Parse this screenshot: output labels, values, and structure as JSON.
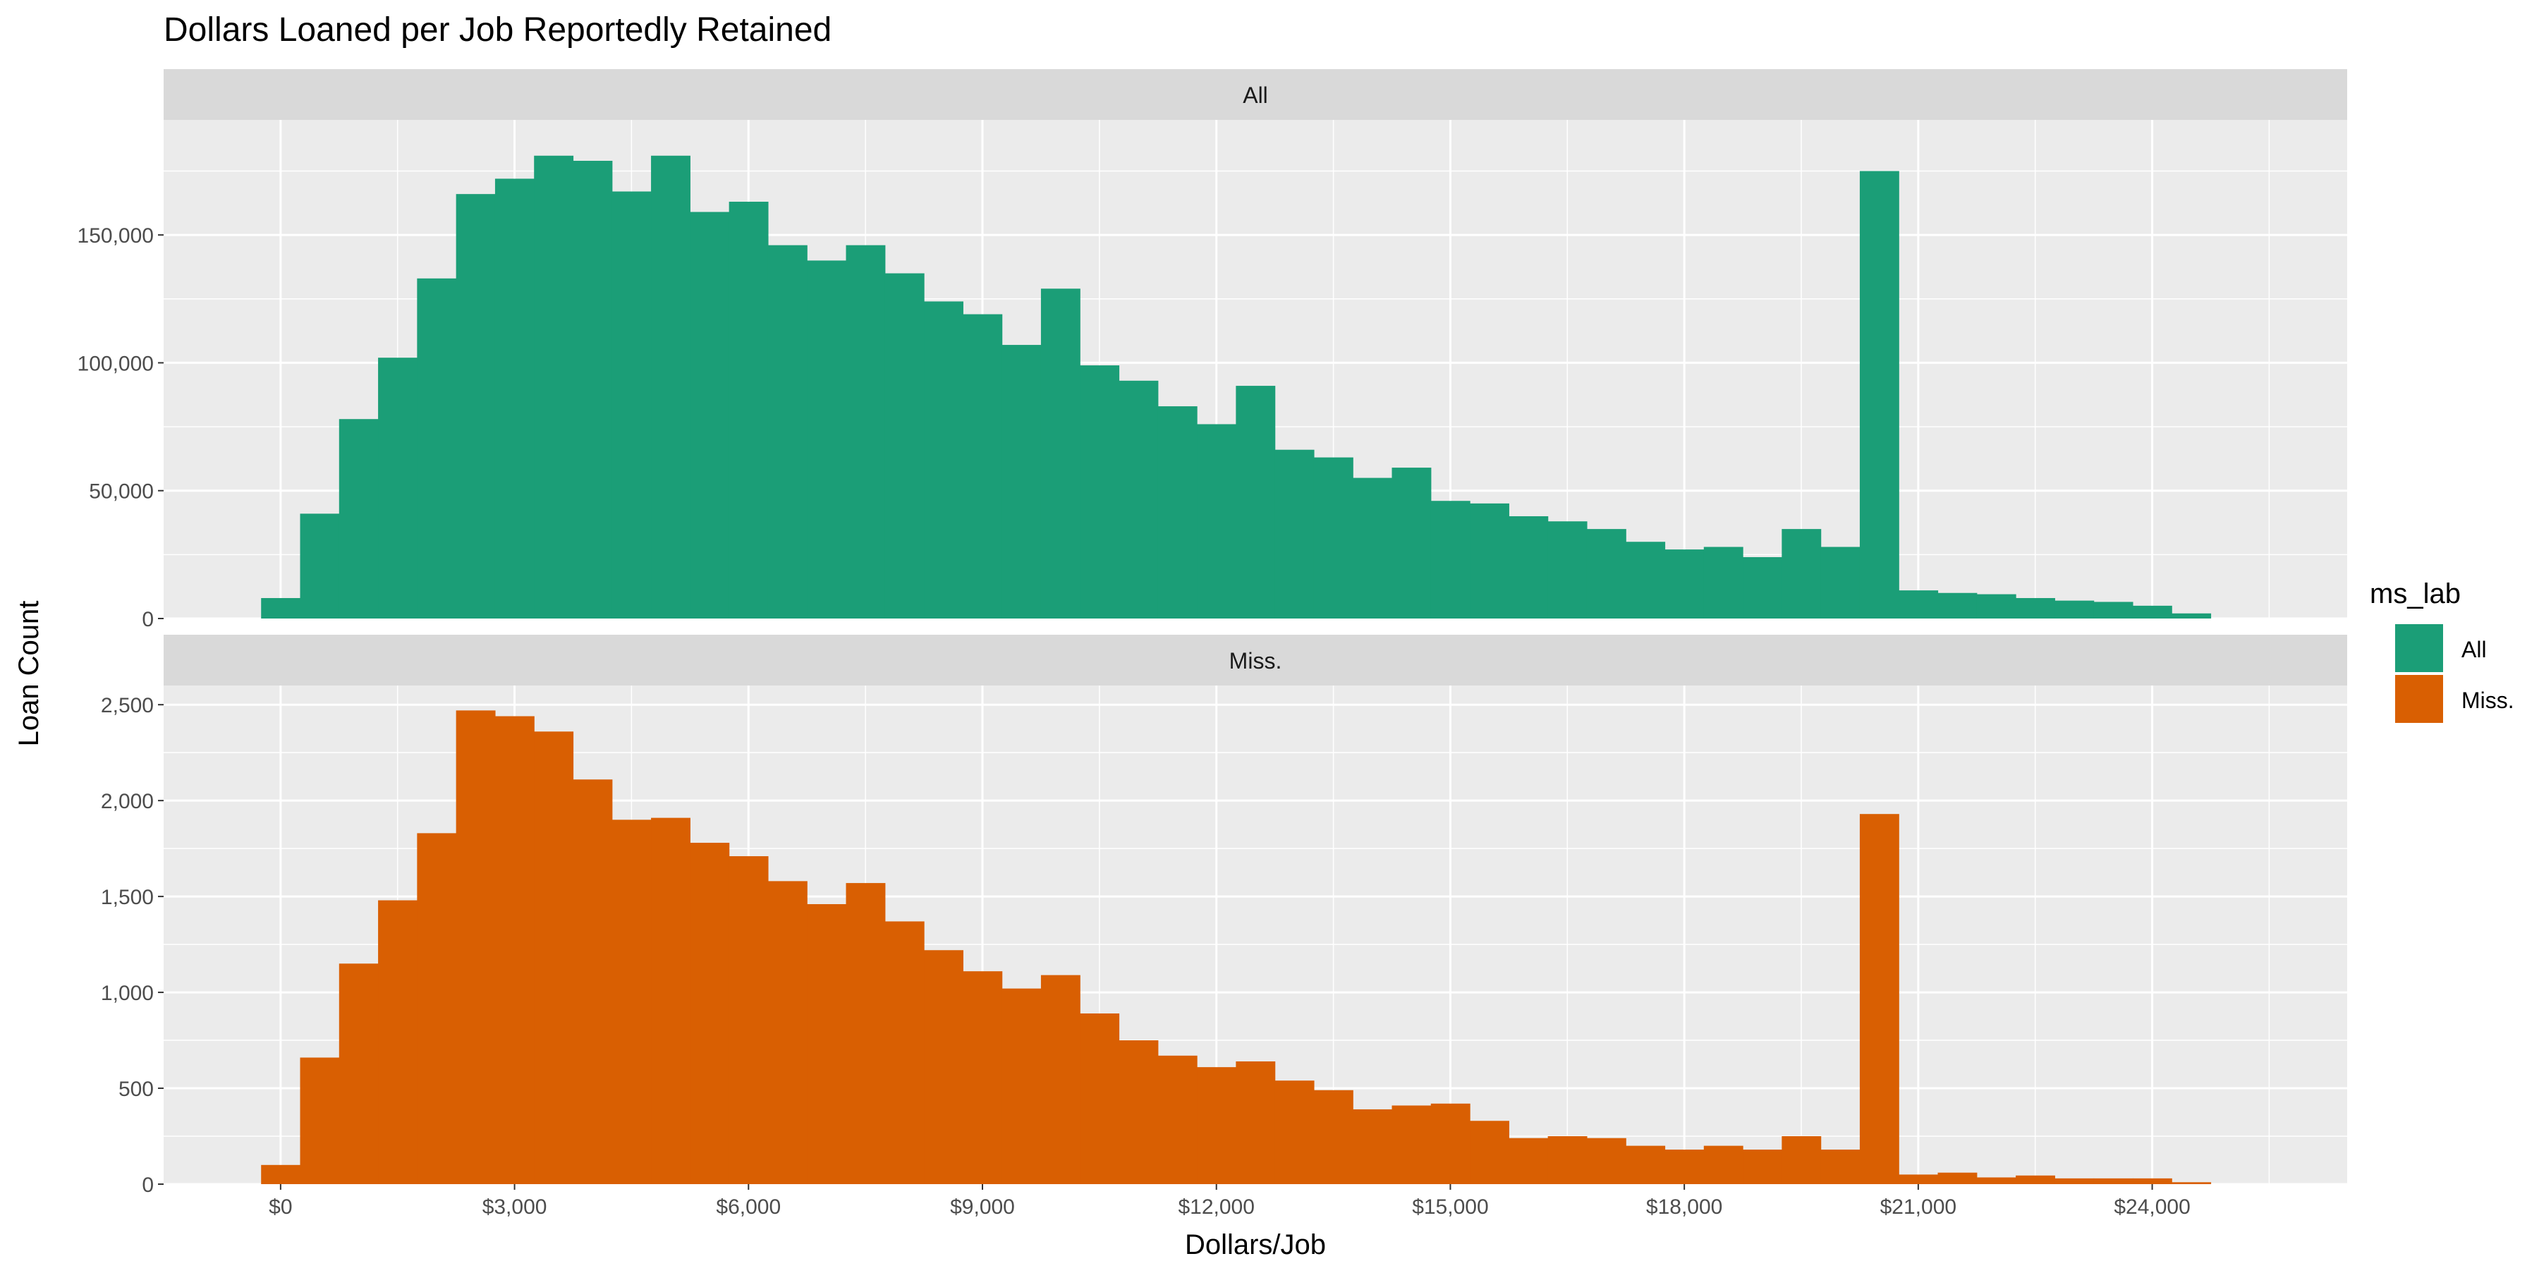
{
  "chart_data": {
    "type": "bar",
    "title": "Dollars Loaned per Job Reportedly Retained",
    "xlabel": "Dollars/Job",
    "ylabel": "Loan Count",
    "legend": {
      "title": "ms_lab",
      "position": "right",
      "items": [
        {
          "label": "All",
          "color": "#1B9E77"
        },
        {
          "label": "Miss.",
          "color": "#D95F02"
        }
      ]
    },
    "bin_width": 500,
    "x_start": -250,
    "xlim": [
      -1500,
      26500
    ],
    "x_ticks": [
      0,
      3000,
      6000,
      9000,
      12000,
      15000,
      18000,
      21000,
      24000
    ],
    "x_tick_labels": [
      "$0",
      "$3,000",
      "$6,000",
      "$9,000",
      "$12,000",
      "$15,000",
      "$18,000",
      "$21,000",
      "$24,000"
    ],
    "grid": true,
    "facets": [
      {
        "strip": "All",
        "color": "#1B9E77",
        "ylim": [
          0,
          195000
        ],
        "y_ticks": [
          0,
          50000,
          100000,
          150000
        ],
        "y_tick_labels": [
          "0",
          "50,000",
          "100,000",
          "150,000"
        ],
        "values": [
          8000,
          41000,
          78000,
          102000,
          133000,
          166000,
          172000,
          181000,
          179000,
          167000,
          181000,
          159000,
          163000,
          146000,
          140000,
          146000,
          135000,
          124000,
          119000,
          107000,
          129000,
          99000,
          93000,
          83000,
          76000,
          91000,
          66000,
          63000,
          55000,
          59000,
          46000,
          45000,
          40000,
          38000,
          35000,
          30000,
          27000,
          28000,
          24000,
          35000,
          28000,
          175000,
          11000,
          10000,
          9500,
          8000,
          7000,
          6500,
          5000,
          2000
        ]
      },
      {
        "strip": "Miss.",
        "color": "#D95F02",
        "ylim": [
          0,
          2600
        ],
        "y_ticks": [
          0,
          500,
          1000,
          1500,
          2000,
          2500
        ],
        "y_tick_labels": [
          "0",
          "500",
          "1,000",
          "1,500",
          "2,000",
          "2,500"
        ],
        "values": [
          100,
          660,
          1150,
          1480,
          1830,
          2470,
          2440,
          2360,
          2110,
          1900,
          1910,
          1780,
          1710,
          1580,
          1460,
          1570,
          1370,
          1220,
          1110,
          1020,
          1090,
          890,
          750,
          670,
          610,
          640,
          540,
          490,
          390,
          410,
          420,
          330,
          240,
          250,
          240,
          200,
          180,
          200,
          180,
          250,
          180,
          1930,
          50,
          60,
          35,
          45,
          30,
          30,
          30,
          10
        ]
      }
    ]
  }
}
